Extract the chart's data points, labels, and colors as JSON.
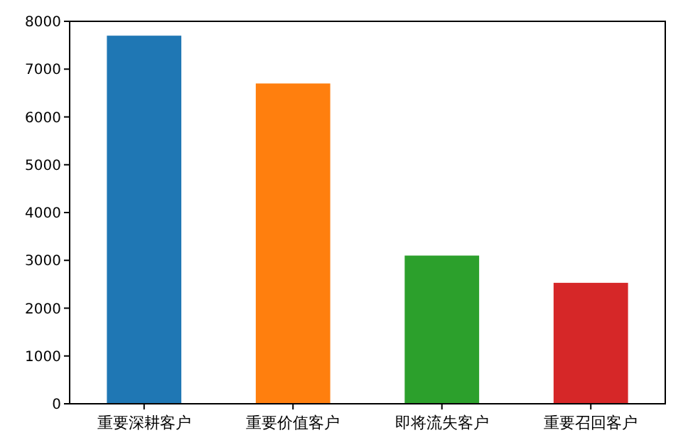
{
  "chart_data": {
    "type": "bar",
    "categories": [
      "重要深耕客户",
      "重要价值客户",
      "即将流失客户",
      "重要召回客户"
    ],
    "values": [
      7700,
      6700,
      3100,
      2530
    ],
    "colors": [
      "#1f77b4",
      "#ff7f0e",
      "#2ca02c",
      "#d62728"
    ],
    "ylim": [
      0,
      8000
    ],
    "yticks": [
      0,
      1000,
      2000,
      3000,
      4000,
      5000,
      6000,
      7000,
      8000
    ],
    "grid": false
  }
}
